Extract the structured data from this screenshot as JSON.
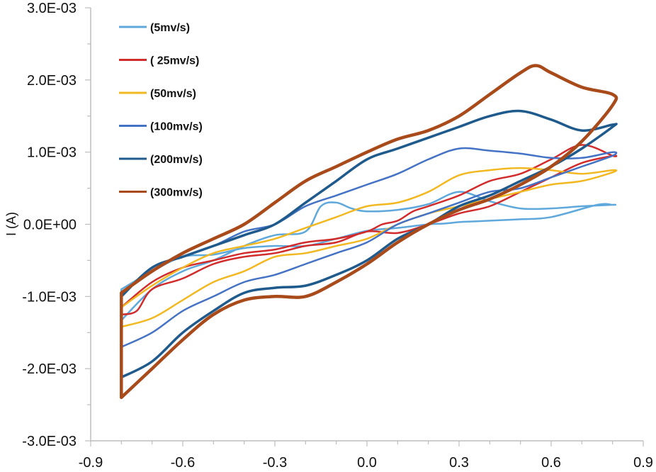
{
  "chart_data": {
    "type": "line",
    "ylabel": "I (A)",
    "xlabel": "",
    "xlim": [
      -0.9,
      0.9
    ],
    "ylim": [
      -0.003,
      0.003
    ],
    "x_ticks": [
      -0.9,
      -0.6,
      -0.3,
      0.0,
      0.3,
      0.6,
      0.9
    ],
    "x_tick_labels": [
      "-0.9",
      "-0.6",
      "-0.3",
      "0.0",
      "0.3",
      "0.6",
      "0.9"
    ],
    "y_ticks": [
      0.003,
      0.002,
      0.001,
      0.0,
      -0.001,
      -0.002,
      -0.003
    ],
    "y_tick_labels": [
      "3.0E-03",
      "2.0E-03",
      "1.0E-03",
      "0.0E+00",
      "-1.0E-03",
      "-2.0E-03",
      "-3.0E-03"
    ],
    "grid": false,
    "legend_position": "top-left",
    "series": [
      {
        "name": "(5mv/s)",
        "color": "#5fa8dc",
        "x": [
          -0.8,
          -0.7,
          -0.6,
          -0.5,
          -0.4,
          -0.3,
          -0.2,
          -0.15,
          -0.1,
          -0.05,
          0.0,
          0.1,
          0.2,
          0.3,
          0.4,
          0.5,
          0.6,
          0.7,
          0.8,
          0.8,
          0.75,
          0.6,
          0.5,
          0.4,
          0.35,
          0.3,
          0.25,
          0.2,
          0.1,
          0.0,
          -0.1,
          -0.2,
          -0.3,
          -0.4,
          -0.5,
          -0.6,
          -0.7,
          -0.8
        ],
        "y": [
          -0.00133,
          -0.0009,
          -0.00065,
          -0.0005,
          -0.0003,
          -0.00015,
          -0.0001,
          0.00025,
          0.0003,
          0.00022,
          0.00018,
          0.0002,
          0.00028,
          0.00045,
          0.00032,
          0.00022,
          0.00022,
          0.00025,
          0.00027,
          0.00027,
          0.00027,
          0.0001,
          7e-05,
          5e-05,
          4e-05,
          3e-05,
          1e-05,
          0.0,
          -5e-05,
          -9e-05,
          -0.0002,
          -0.0003,
          -0.0003,
          -0.00033,
          -0.00042,
          -0.00045,
          -0.00065,
          -0.0009
        ]
      },
      {
        "name": "( 25mv/s)",
        "color": "#d22b2b",
        "x": [
          -0.8,
          -0.75,
          -0.7,
          -0.6,
          -0.5,
          -0.4,
          -0.3,
          -0.2,
          -0.1,
          0.0,
          0.1,
          0.2,
          0.3,
          0.4,
          0.5,
          0.6,
          0.7,
          0.8,
          0.8,
          0.7,
          0.6,
          0.5,
          0.4,
          0.3,
          0.2,
          0.15,
          0.1,
          0.05,
          0.0,
          -0.1,
          -0.2,
          -0.3,
          -0.4,
          -0.5,
          -0.6,
          -0.7,
          -0.8
        ],
        "y": [
          -0.00125,
          -0.0012,
          -0.0009,
          -0.00075,
          -0.00055,
          -0.00045,
          -0.0004,
          -0.0003,
          -0.00025,
          -0.0001,
          -0.00012,
          0.0,
          0.00015,
          0.00025,
          0.00045,
          0.00065,
          0.00085,
          0.00095,
          0.00095,
          0.0011,
          0.0009,
          0.0007,
          0.0006,
          0.0004,
          0.00025,
          0.00018,
          5e-05,
          0.0,
          -0.0001,
          -0.0002,
          -0.00025,
          -0.00035,
          -0.0004,
          -0.0005,
          -0.0006,
          -0.0008,
          -0.00115
        ]
      },
      {
        "name": "(50mv/s)",
        "color": "#f2b822",
        "x": [
          -0.8,
          -0.7,
          -0.6,
          -0.5,
          -0.4,
          -0.3,
          -0.2,
          -0.1,
          0.0,
          0.1,
          0.2,
          0.3,
          0.4,
          0.5,
          0.6,
          0.7,
          0.8,
          0.8,
          0.7,
          0.6,
          0.5,
          0.4,
          0.3,
          0.2,
          0.1,
          0.0,
          -0.1,
          -0.2,
          -0.3,
          -0.4,
          -0.5,
          -0.6,
          -0.7,
          -0.8
        ],
        "y": [
          -0.00142,
          -0.0013,
          -0.00105,
          -0.0008,
          -0.00065,
          -0.00045,
          -0.0004,
          -0.0003,
          -0.0002,
          0.0,
          0.00015,
          0.00025,
          0.00035,
          0.00045,
          0.00055,
          0.0006,
          0.00072,
          0.00075,
          0.0007,
          0.00075,
          0.00078,
          0.00075,
          0.00068,
          0.00045,
          0.0003,
          0.00025,
          0.0001,
          -5e-05,
          -0.0002,
          -0.0003,
          -0.0004,
          -0.0006,
          -0.00085,
          -0.00115
        ]
      },
      {
        "name": "(100mv/s)",
        "color": "#4472c4",
        "x": [
          -0.8,
          -0.7,
          -0.6,
          -0.5,
          -0.4,
          -0.3,
          -0.2,
          -0.1,
          0.0,
          0.1,
          0.2,
          0.3,
          0.4,
          0.5,
          0.6,
          0.7,
          0.8,
          0.8,
          0.7,
          0.6,
          0.5,
          0.4,
          0.3,
          0.2,
          0.1,
          0.0,
          -0.1,
          -0.2,
          -0.3,
          -0.4,
          -0.5,
          -0.6,
          -0.7,
          -0.8
        ],
        "y": [
          -0.0017,
          -0.0015,
          -0.0012,
          -0.001,
          -0.0008,
          -0.0007,
          -0.00055,
          -0.0004,
          -0.00025,
          0.0,
          0.00015,
          0.0003,
          0.00045,
          0.0005,
          0.00065,
          0.0008,
          0.00095,
          0.001,
          0.00092,
          0.00092,
          0.00098,
          0.00102,
          0.00105,
          0.0009,
          0.0007,
          0.00055,
          0.0004,
          0.00025,
          0.0,
          -0.0001,
          -0.0003,
          -0.00045,
          -0.0006,
          -0.001
        ]
      },
      {
        "name": "(200mv/s)",
        "color": "#1f5a8c",
        "x": [
          -0.8,
          -0.7,
          -0.6,
          -0.5,
          -0.4,
          -0.3,
          -0.2,
          -0.1,
          0.0,
          0.1,
          0.2,
          0.3,
          0.4,
          0.5,
          0.6,
          0.7,
          0.8,
          0.8,
          0.7,
          0.6,
          0.5,
          0.4,
          0.3,
          0.2,
          0.1,
          0.0,
          -0.1,
          -0.2,
          -0.3,
          -0.4,
          -0.5,
          -0.6,
          -0.7,
          -0.8
        ],
        "y": [
          -0.00212,
          -0.0019,
          -0.0015,
          -0.0012,
          -0.00095,
          -0.00088,
          -0.00085,
          -0.0007,
          -0.0005,
          -0.0002,
          0.0,
          0.00025,
          0.0004,
          0.0006,
          0.0008,
          0.00105,
          0.00135,
          0.00138,
          0.0013,
          0.00145,
          0.00157,
          0.0015,
          0.00135,
          0.0012,
          0.00105,
          0.0009,
          0.0006,
          0.0003,
          0.0,
          -0.00015,
          -0.0003,
          -0.00045,
          -0.0006,
          -0.001
        ]
      },
      {
        "name": "(300mv/s)",
        "color": "#a84a1a",
        "x": [
          -0.8,
          -0.7,
          -0.6,
          -0.5,
          -0.4,
          -0.3,
          -0.2,
          -0.1,
          0.0,
          0.1,
          0.2,
          0.3,
          0.4,
          0.5,
          0.6,
          0.7,
          0.8,
          0.8,
          0.7,
          0.6,
          0.55,
          0.5,
          0.4,
          0.3,
          0.2,
          0.1,
          0.0,
          -0.1,
          -0.2,
          -0.3,
          -0.4,
          -0.5,
          -0.6,
          -0.7,
          -0.8
        ],
        "y": [
          -0.0024,
          -0.002,
          -0.0016,
          -0.00125,
          -0.00105,
          -0.001,
          -0.001,
          -0.0008,
          -0.00055,
          -0.00025,
          0.0,
          0.0002,
          0.00035,
          0.00055,
          0.0008,
          0.00115,
          0.00165,
          0.0018,
          0.0019,
          0.0021,
          0.0022,
          0.0021,
          0.0018,
          0.0015,
          0.0013,
          0.00118,
          0.001,
          0.0008,
          0.0006,
          0.0003,
          0.0,
          -0.0002,
          -0.0004,
          -0.00065,
          -0.00095
        ]
      }
    ]
  }
}
